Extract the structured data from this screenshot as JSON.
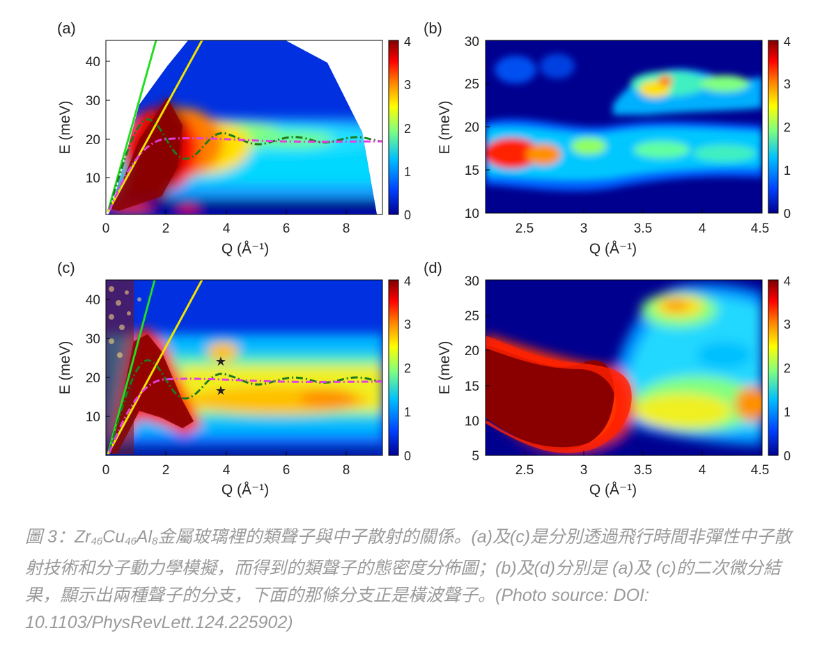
{
  "figure": {
    "panels": [
      {
        "label": "(a)",
        "xlabel": "Q (Å⁻¹)",
        "ylabel": "E (meV)",
        "xticks": [
          "0",
          "2",
          "4",
          "6",
          "8"
        ],
        "yticks": [
          "10",
          "20",
          "30",
          "40"
        ],
        "colorbar_ticks": [
          "0",
          "1",
          "2",
          "3",
          "4"
        ]
      },
      {
        "label": "(b)",
        "xlabel": "Q (Å⁻¹)",
        "ylabel": "E (meV)",
        "xticks": [
          "2.5",
          "3",
          "3.5",
          "4",
          "4.5"
        ],
        "yticks": [
          "10",
          "15",
          "20",
          "25",
          "30"
        ],
        "colorbar_ticks": [
          "0",
          "1",
          "2",
          "3",
          "4"
        ]
      },
      {
        "label": "(c)",
        "xlabel": "Q (Å⁻¹)",
        "ylabel": "E (meV)",
        "xticks": [
          "0",
          "2",
          "4",
          "6",
          "8"
        ],
        "yticks": [
          "10",
          "20",
          "30",
          "40"
        ],
        "colorbar_ticks": [
          "0",
          "1",
          "2",
          "3",
          "4"
        ]
      },
      {
        "label": "(d)",
        "xlabel": "Q (Å⁻¹)",
        "ylabel": "E (meV)",
        "xticks": [
          "2.5",
          "3",
          "3.5",
          "4",
          "4.5"
        ],
        "yticks": [
          "5",
          "10",
          "15",
          "20",
          "25",
          "30"
        ],
        "colorbar_ticks": [
          "0",
          "1",
          "2",
          "3",
          "4"
        ]
      }
    ],
    "colormap": [
      "#00008f",
      "#0040ff",
      "#00c0ff",
      "#80ff80",
      "#ffff00",
      "#ff8000",
      "#ff0000",
      "#800000"
    ],
    "line_colors": {
      "green": "#22dd22",
      "yellow": "#f2e400",
      "dash_green": "#1e7a1e",
      "dash_magenta": "#e040e0",
      "star": "#1a2fbf"
    }
  },
  "chart_data": [
    {
      "type": "heatmap",
      "panel": "(a)",
      "xlabel": "Q (Å⁻¹)",
      "ylabel": "E (meV)",
      "xlim": [
        0,
        9.2
      ],
      "ylim": [
        0,
        45
      ],
      "clim": [
        0,
        4
      ]
    },
    {
      "type": "heatmap",
      "panel": "(b)",
      "xlabel": "Q (Å⁻¹)",
      "ylabel": "E (meV)",
      "xlim": [
        2.2,
        4.5
      ],
      "ylim": [
        10,
        30
      ],
      "clim": [
        0,
        4
      ]
    },
    {
      "type": "heatmap",
      "panel": "(c)",
      "xlabel": "Q (Å⁻¹)",
      "ylabel": "E (meV)",
      "xlim": [
        0,
        9.2
      ],
      "ylim": [
        0,
        45
      ],
      "clim": [
        0,
        4
      ],
      "markers": [
        {
          "symbol": "star",
          "x": 3.8,
          "y": 24.5
        },
        {
          "symbol": "star",
          "x": 3.8,
          "y": 16.5
        }
      ]
    },
    {
      "type": "heatmap",
      "panel": "(d)",
      "xlabel": "Q (Å⁻¹)",
      "ylabel": "E (meV)",
      "xlim": [
        2.2,
        4.5
      ],
      "ylim": [
        5,
        30
      ],
      "clim": [
        0,
        4
      ]
    }
  ],
  "caption": {
    "prefix": "圖 3：Zr",
    "sub1": "46",
    "mid1": "Cu",
    "sub2": "46",
    "mid2": "Al",
    "sub3": "8",
    "rest": "金屬玻璃裡的類聲子與中子散射的關係。(a)及(c)是分別透過飛行時間非彈性中子散射技術和分子動力學模擬，而得到的類聲子的態密度分佈圖；(b)及(d)分別是 (a)及 (c)的二次微分結果，顯示出兩種聲子的分支，下面的那條分支正是橫波聲子。(Photo source: DOI: 10.1103/PhysRevLett.124.225902)"
  }
}
